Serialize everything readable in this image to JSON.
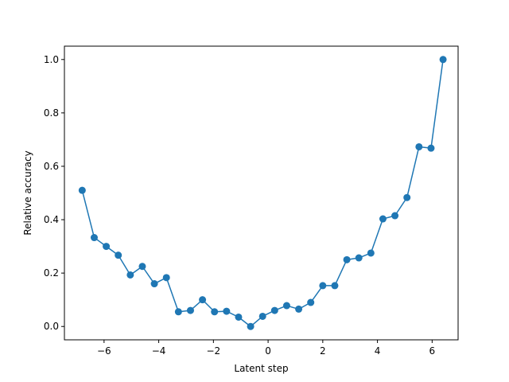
{
  "chart_data": {
    "type": "line",
    "xlabel": "Latent step",
    "ylabel": "Relative accuracy",
    "xlim": [
      -7.45,
      6.95
    ],
    "ylim": [
      -0.05,
      1.05
    ],
    "grid": false,
    "marker": "circle",
    "series_color": "#1f77b4",
    "xticks": [
      -6,
      -4,
      -2,
      0,
      2,
      4,
      6
    ],
    "xtick_labels": [
      "−6",
      "−4",
      "−2",
      "0",
      "2",
      "4",
      "6"
    ],
    "yticks": [
      0.0,
      0.2,
      0.4,
      0.6,
      0.8,
      1.0
    ],
    "ytick_labels": [
      "0.0",
      "0.2",
      "0.4",
      "0.6",
      "0.8",
      "1.0"
    ],
    "series": [
      {
        "x": [
          -6.8,
          -6.36,
          -5.92,
          -5.48,
          -5.04,
          -4.6,
          -4.16,
          -3.72,
          -3.28,
          -2.84,
          -2.4,
          -1.96,
          -1.52,
          -1.08,
          -0.64,
          -0.2,
          0.24,
          0.68,
          1.12,
          1.56,
          2.0,
          2.44,
          2.88,
          3.32,
          3.76,
          4.2,
          4.64,
          5.08,
          5.52,
          5.96,
          6.4
        ],
        "y": [
          0.51,
          0.333,
          0.3,
          0.267,
          0.193,
          0.225,
          0.16,
          0.183,
          0.055,
          0.06,
          0.1,
          0.055,
          0.057,
          0.035,
          0.0,
          0.038,
          0.06,
          0.078,
          0.065,
          0.09,
          0.153,
          0.153,
          0.25,
          0.257,
          0.275,
          0.403,
          0.415,
          0.483,
          0.673,
          0.668,
          1.0
        ]
      }
    ]
  }
}
